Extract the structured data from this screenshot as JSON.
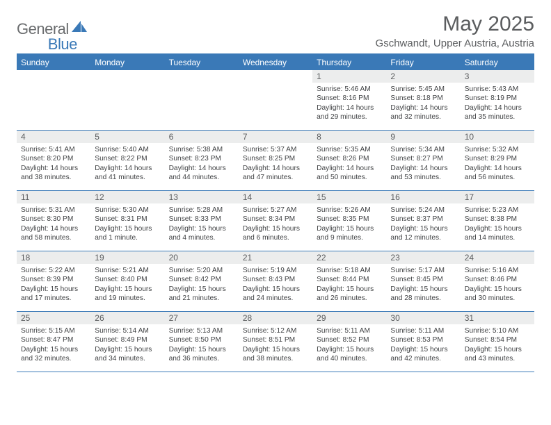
{
  "brand": {
    "general": "General",
    "blue": "Blue"
  },
  "title": "May 2025",
  "location": "Gschwandt, Upper Austria, Austria",
  "colors": {
    "accent": "#3a79b7",
    "header_text": "#5b5d5f",
    "dow_bg": "#3a79b7",
    "dow_text": "#ffffff",
    "daynum_bg": "#eceded",
    "body_text": "#404244",
    "background": "#ffffff"
  },
  "typography": {
    "font_family": "Arial",
    "month_title_size_pt": 22,
    "location_size_pt": 11,
    "dow_size_pt": 9,
    "daynum_size_pt": 9,
    "detail_size_pt": 7.5
  },
  "layout": {
    "columns": 7,
    "rows": 5,
    "first_weekday_col_index": 4
  },
  "dow": [
    "Sunday",
    "Monday",
    "Tuesday",
    "Wednesday",
    "Thursday",
    "Friday",
    "Saturday"
  ],
  "days": [
    {
      "n": 1,
      "sr": "5:46 AM",
      "ss": "8:16 PM",
      "d": "14 hours and 29 minutes."
    },
    {
      "n": 2,
      "sr": "5:45 AM",
      "ss": "8:18 PM",
      "d": "14 hours and 32 minutes."
    },
    {
      "n": 3,
      "sr": "5:43 AM",
      "ss": "8:19 PM",
      "d": "14 hours and 35 minutes."
    },
    {
      "n": 4,
      "sr": "5:41 AM",
      "ss": "8:20 PM",
      "d": "14 hours and 38 minutes."
    },
    {
      "n": 5,
      "sr": "5:40 AM",
      "ss": "8:22 PM",
      "d": "14 hours and 41 minutes."
    },
    {
      "n": 6,
      "sr": "5:38 AM",
      "ss": "8:23 PM",
      "d": "14 hours and 44 minutes."
    },
    {
      "n": 7,
      "sr": "5:37 AM",
      "ss": "8:25 PM",
      "d": "14 hours and 47 minutes."
    },
    {
      "n": 8,
      "sr": "5:35 AM",
      "ss": "8:26 PM",
      "d": "14 hours and 50 minutes."
    },
    {
      "n": 9,
      "sr": "5:34 AM",
      "ss": "8:27 PM",
      "d": "14 hours and 53 minutes."
    },
    {
      "n": 10,
      "sr": "5:32 AM",
      "ss": "8:29 PM",
      "d": "14 hours and 56 minutes."
    },
    {
      "n": 11,
      "sr": "5:31 AM",
      "ss": "8:30 PM",
      "d": "14 hours and 58 minutes."
    },
    {
      "n": 12,
      "sr": "5:30 AM",
      "ss": "8:31 PM",
      "d": "15 hours and 1 minute."
    },
    {
      "n": 13,
      "sr": "5:28 AM",
      "ss": "8:33 PM",
      "d": "15 hours and 4 minutes."
    },
    {
      "n": 14,
      "sr": "5:27 AM",
      "ss": "8:34 PM",
      "d": "15 hours and 6 minutes."
    },
    {
      "n": 15,
      "sr": "5:26 AM",
      "ss": "8:35 PM",
      "d": "15 hours and 9 minutes."
    },
    {
      "n": 16,
      "sr": "5:24 AM",
      "ss": "8:37 PM",
      "d": "15 hours and 12 minutes."
    },
    {
      "n": 17,
      "sr": "5:23 AM",
      "ss": "8:38 PM",
      "d": "15 hours and 14 minutes."
    },
    {
      "n": 18,
      "sr": "5:22 AM",
      "ss": "8:39 PM",
      "d": "15 hours and 17 minutes."
    },
    {
      "n": 19,
      "sr": "5:21 AM",
      "ss": "8:40 PM",
      "d": "15 hours and 19 minutes."
    },
    {
      "n": 20,
      "sr": "5:20 AM",
      "ss": "8:42 PM",
      "d": "15 hours and 21 minutes."
    },
    {
      "n": 21,
      "sr": "5:19 AM",
      "ss": "8:43 PM",
      "d": "15 hours and 24 minutes."
    },
    {
      "n": 22,
      "sr": "5:18 AM",
      "ss": "8:44 PM",
      "d": "15 hours and 26 minutes."
    },
    {
      "n": 23,
      "sr": "5:17 AM",
      "ss": "8:45 PM",
      "d": "15 hours and 28 minutes."
    },
    {
      "n": 24,
      "sr": "5:16 AM",
      "ss": "8:46 PM",
      "d": "15 hours and 30 minutes."
    },
    {
      "n": 25,
      "sr": "5:15 AM",
      "ss": "8:47 PM",
      "d": "15 hours and 32 minutes."
    },
    {
      "n": 26,
      "sr": "5:14 AM",
      "ss": "8:49 PM",
      "d": "15 hours and 34 minutes."
    },
    {
      "n": 27,
      "sr": "5:13 AM",
      "ss": "8:50 PM",
      "d": "15 hours and 36 minutes."
    },
    {
      "n": 28,
      "sr": "5:12 AM",
      "ss": "8:51 PM",
      "d": "15 hours and 38 minutes."
    },
    {
      "n": 29,
      "sr": "5:11 AM",
      "ss": "8:52 PM",
      "d": "15 hours and 40 minutes."
    },
    {
      "n": 30,
      "sr": "5:11 AM",
      "ss": "8:53 PM",
      "d": "15 hours and 42 minutes."
    },
    {
      "n": 31,
      "sr": "5:10 AM",
      "ss": "8:54 PM",
      "d": "15 hours and 43 minutes."
    }
  ],
  "labels": {
    "sunrise": "Sunrise: ",
    "sunset": "Sunset: ",
    "daylight": "Daylight: "
  }
}
